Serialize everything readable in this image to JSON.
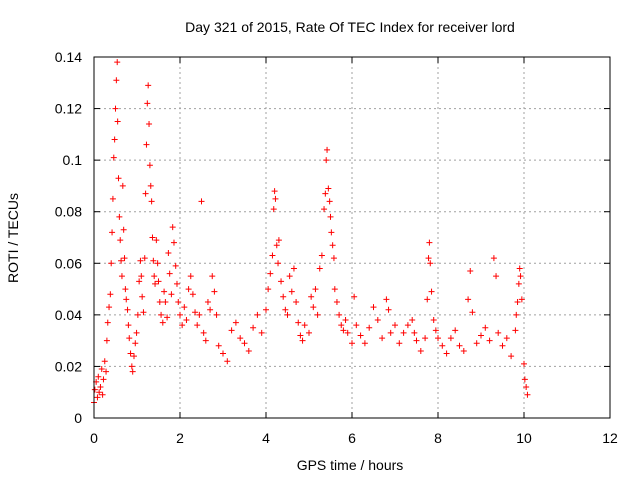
{
  "chart_data": {
    "type": "scatter",
    "title": "Day 321 of 2015, Rate Of TEC Index for receiver lord",
    "xlabel": "GPS time / hours",
    "ylabel": "ROTI / TECUs",
    "xlim": [
      0,
      12
    ],
    "ylim": [
      0,
      0.14
    ],
    "x_ticks": [
      "0",
      "2",
      "4",
      "6",
      "8",
      "10",
      "12"
    ],
    "y_ticks": [
      "0",
      "0.02",
      "0.04",
      "0.06",
      "0.08",
      "0.1",
      "0.12",
      "0.14"
    ],
    "grid": true,
    "marker": "+",
    "series_color": "#ff0000",
    "series": [
      {
        "points": [
          [
            0.0,
            0.006
          ],
          [
            0.02,
            0.011
          ],
          [
            0.05,
            0.014
          ],
          [
            0.08,
            0.008
          ],
          [
            0.1,
            0.016
          ],
          [
            0.12,
            0.01
          ],
          [
            0.15,
            0.012
          ],
          [
            0.18,
            0.019
          ],
          [
            0.2,
            0.009
          ],
          [
            0.22,
            0.015
          ],
          [
            0.25,
            0.022
          ],
          [
            0.28,
            0.018
          ],
          [
            0.3,
            0.03
          ],
          [
            0.32,
            0.037
          ],
          [
            0.35,
            0.043
          ],
          [
            0.38,
            0.048
          ],
          [
            0.4,
            0.06
          ],
          [
            0.42,
            0.072
          ],
          [
            0.44,
            0.085
          ],
          [
            0.46,
            0.101
          ],
          [
            0.48,
            0.108
          ],
          [
            0.5,
            0.12
          ],
          [
            0.52,
            0.131
          ],
          [
            0.54,
            0.138
          ],
          [
            0.55,
            0.115
          ],
          [
            0.57,
            0.093
          ],
          [
            0.59,
            0.078
          ],
          [
            0.61,
            0.069
          ],
          [
            0.63,
            0.061
          ],
          [
            0.65,
            0.055
          ],
          [
            0.67,
            0.09
          ],
          [
            0.69,
            0.073
          ],
          [
            0.71,
            0.062
          ],
          [
            0.73,
            0.05
          ],
          [
            0.75,
            0.046
          ],
          [
            0.78,
            0.042
          ],
          [
            0.8,
            0.036
          ],
          [
            0.82,
            0.031
          ],
          [
            0.85,
            0.025
          ],
          [
            0.88,
            0.02
          ],
          [
            0.9,
            0.018
          ],
          [
            0.93,
            0.024
          ],
          [
            0.96,
            0.029
          ],
          [
            0.99,
            0.033
          ],
          [
            1.02,
            0.04
          ],
          [
            1.05,
            0.053
          ],
          [
            1.08,
            0.061
          ],
          [
            1.1,
            0.055
          ],
          [
            1.12,
            0.047
          ],
          [
            1.15,
            0.041
          ],
          [
            1.18,
            0.062
          ],
          [
            1.2,
            0.087
          ],
          [
            1.22,
            0.106
          ],
          [
            1.24,
            0.122
          ],
          [
            1.26,
            0.129
          ],
          [
            1.28,
            0.114
          ],
          [
            1.3,
            0.098
          ],
          [
            1.32,
            0.09
          ],
          [
            1.34,
            0.084
          ],
          [
            1.36,
            0.07
          ],
          [
            1.38,
            0.061
          ],
          [
            1.4,
            0.055
          ],
          [
            1.42,
            0.052
          ],
          [
            1.45,
            0.069
          ],
          [
            1.48,
            0.06
          ],
          [
            1.5,
            0.053
          ],
          [
            1.53,
            0.045
          ],
          [
            1.56,
            0.04
          ],
          [
            1.6,
            0.037
          ],
          [
            1.63,
            0.049
          ],
          [
            1.66,
            0.045
          ],
          [
            1.7,
            0.039
          ],
          [
            1.73,
            0.064
          ],
          [
            1.76,
            0.056
          ],
          [
            1.8,
            0.048
          ],
          [
            1.83,
            0.074
          ],
          [
            1.86,
            0.068
          ],
          [
            1.9,
            0.059
          ],
          [
            1.93,
            0.052
          ],
          [
            1.96,
            0.045
          ],
          [
            2.0,
            0.04
          ],
          [
            2.05,
            0.036
          ],
          [
            2.1,
            0.043
          ],
          [
            2.15,
            0.038
          ],
          [
            2.2,
            0.05
          ],
          [
            2.25,
            0.055
          ],
          [
            2.3,
            0.048
          ],
          [
            2.35,
            0.041
          ],
          [
            2.4,
            0.036
          ],
          [
            2.45,
            0.04
          ],
          [
            2.5,
            0.084
          ],
          [
            2.55,
            0.033
          ],
          [
            2.6,
            0.03
          ],
          [
            2.65,
            0.045
          ],
          [
            2.7,
            0.042
          ],
          [
            2.75,
            0.055
          ],
          [
            2.8,
            0.049
          ],
          [
            2.85,
            0.04
          ],
          [
            2.9,
            0.028
          ],
          [
            3.0,
            0.025
          ],
          [
            3.1,
            0.022
          ],
          [
            3.2,
            0.034
          ],
          [
            3.3,
            0.037
          ],
          [
            3.4,
            0.031
          ],
          [
            3.5,
            0.029
          ],
          [
            3.6,
            0.026
          ],
          [
            3.7,
            0.035
          ],
          [
            3.8,
            0.04
          ],
          [
            3.9,
            0.033
          ],
          [
            4.0,
            0.042
          ],
          [
            4.05,
            0.05
          ],
          [
            4.1,
            0.056
          ],
          [
            4.15,
            0.063
          ],
          [
            4.18,
            0.081
          ],
          [
            4.2,
            0.088
          ],
          [
            4.22,
            0.085
          ],
          [
            4.25,
            0.067
          ],
          [
            4.28,
            0.06
          ],
          [
            4.3,
            0.069
          ],
          [
            4.35,
            0.053
          ],
          [
            4.4,
            0.047
          ],
          [
            4.45,
            0.042
          ],
          [
            4.5,
            0.04
          ],
          [
            4.55,
            0.055
          ],
          [
            4.6,
            0.049
          ],
          [
            4.65,
            0.058
          ],
          [
            4.7,
            0.045
          ],
          [
            4.75,
            0.037
          ],
          [
            4.8,
            0.032
          ],
          [
            4.85,
            0.03
          ],
          [
            4.9,
            0.036
          ],
          [
            5.0,
            0.033
          ],
          [
            5.05,
            0.047
          ],
          [
            5.1,
            0.043
          ],
          [
            5.15,
            0.05
          ],
          [
            5.2,
            0.04
          ],
          [
            5.25,
            0.058
          ],
          [
            5.3,
            0.063
          ],
          [
            5.35,
            0.081
          ],
          [
            5.38,
            0.087
          ],
          [
            5.4,
            0.1
          ],
          [
            5.42,
            0.104
          ],
          [
            5.45,
            0.089
          ],
          [
            5.48,
            0.084
          ],
          [
            5.5,
            0.078
          ],
          [
            5.52,
            0.072
          ],
          [
            5.55,
            0.067
          ],
          [
            5.58,
            0.062
          ],
          [
            5.6,
            0.05
          ],
          [
            5.65,
            0.045
          ],
          [
            5.7,
            0.04
          ],
          [
            5.75,
            0.036
          ],
          [
            5.8,
            0.034
          ],
          [
            5.85,
            0.038
          ],
          [
            5.9,
            0.033
          ],
          [
            6.0,
            0.029
          ],
          [
            6.05,
            0.047
          ],
          [
            6.1,
            0.036
          ],
          [
            6.2,
            0.032
          ],
          [
            6.3,
            0.029
          ],
          [
            6.4,
            0.035
          ],
          [
            6.5,
            0.043
          ],
          [
            6.6,
            0.038
          ],
          [
            6.7,
            0.031
          ],
          [
            6.8,
            0.046
          ],
          [
            6.85,
            0.042
          ],
          [
            6.9,
            0.033
          ],
          [
            7.0,
            0.036
          ],
          [
            7.1,
            0.029
          ],
          [
            7.2,
            0.033
          ],
          [
            7.3,
            0.036
          ],
          [
            7.4,
            0.038
          ],
          [
            7.45,
            0.033
          ],
          [
            7.5,
            0.03
          ],
          [
            7.6,
            0.026
          ],
          [
            7.7,
            0.031
          ],
          [
            7.75,
            0.046
          ],
          [
            7.78,
            0.062
          ],
          [
            7.8,
            0.068
          ],
          [
            7.82,
            0.06
          ],
          [
            7.85,
            0.049
          ],
          [
            7.9,
            0.038
          ],
          [
            7.95,
            0.034
          ],
          [
            8.0,
            0.031
          ],
          [
            8.1,
            0.028
          ],
          [
            8.2,
            0.025
          ],
          [
            8.3,
            0.031
          ],
          [
            8.4,
            0.034
          ],
          [
            8.5,
            0.028
          ],
          [
            8.6,
            0.026
          ],
          [
            8.7,
            0.046
          ],
          [
            8.75,
            0.057
          ],
          [
            8.8,
            0.041
          ],
          [
            8.9,
            0.029
          ],
          [
            9.0,
            0.032
          ],
          [
            9.1,
            0.035
          ],
          [
            9.2,
            0.03
          ],
          [
            9.3,
            0.062
          ],
          [
            9.35,
            0.055
          ],
          [
            9.4,
            0.033
          ],
          [
            9.5,
            0.028
          ],
          [
            9.6,
            0.031
          ],
          [
            9.7,
            0.024
          ],
          [
            9.8,
            0.034
          ],
          [
            9.82,
            0.04
          ],
          [
            9.85,
            0.045
          ],
          [
            9.88,
            0.052
          ],
          [
            9.9,
            0.058
          ],
          [
            9.92,
            0.055
          ],
          [
            9.95,
            0.046
          ],
          [
            10.0,
            0.021
          ],
          [
            10.02,
            0.015
          ],
          [
            10.05,
            0.012
          ],
          [
            10.08,
            0.009
          ]
        ]
      }
    ]
  }
}
